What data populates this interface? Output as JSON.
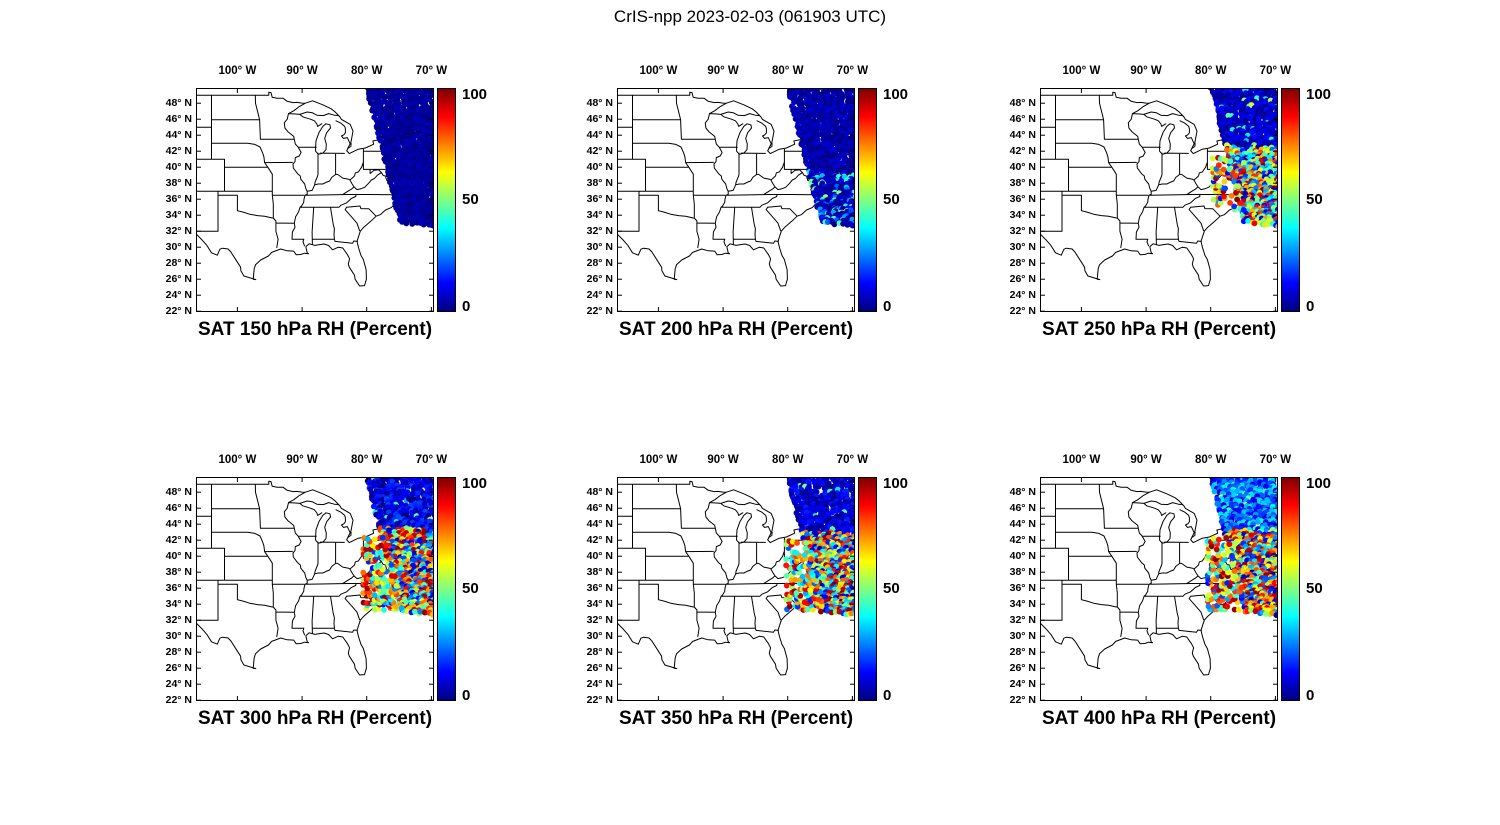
{
  "figure": {
    "title": "CrIS-npp 2023-02-03 (061903 UTC)"
  },
  "axes": {
    "lon_tick_labels": [
      "100° W",
      "90° W",
      "80° W",
      "70° W"
    ],
    "lon_tick_values": [
      -100,
      -90,
      -80,
      -70
    ],
    "lat_tick_labels": [
      "48° N",
      "46° N",
      "44° N",
      "42° N",
      "40° N",
      "38° N",
      "36° N",
      "34° N",
      "32° N",
      "30° N",
      "28° N",
      "26° N",
      "24° N",
      "22° N"
    ],
    "lat_tick_values": [
      48,
      46,
      44,
      42,
      40,
      38,
      36,
      34,
      32,
      30,
      28,
      26,
      24,
      22
    ],
    "lon_range_deg": [
      -106.4,
      -69.6
    ],
    "lat_range_deg": [
      21.9,
      49.9
    ]
  },
  "colorbar": {
    "min": 0,
    "max": 100,
    "tick_labels": [
      "100",
      "50",
      "0"
    ],
    "tick_values": [
      100,
      50,
      0
    ],
    "colormap": "jet",
    "gradient_stops": [
      "#000080",
      "#0000ff",
      "#00ffff",
      "#ffff00",
      "#ff0000",
      "#800000"
    ]
  },
  "panels": [
    {
      "title": "SAT 150 hPa RH (Percent)",
      "level_hPa": 150,
      "sim": {
        "seed": 11,
        "mode": "uniform",
        "nMin": 0,
        "nMax": 6,
        "patch": false
      }
    },
    {
      "title": "SAT 200 hPa RH (Percent)",
      "level_hPa": 200,
      "sim": {
        "seed": 23,
        "mode": "coastal",
        "nMin": 0,
        "nMax": 9,
        "patch": false
      }
    },
    {
      "title": "SAT 250 hPa RH (Percent)",
      "level_hPa": 250,
      "sim": {
        "seed": 37,
        "mode": "colorful",
        "nMin": 0,
        "nMax": 14,
        "splitLat": 42.5,
        "highFrac": 0.3,
        "patch": true,
        "patchWest": -79.6,
        "patchLatMin": 34.8,
        "patchLatMax": 41.5,
        "patchDensity": 0.33,
        "dropNorth": 0
      }
    },
    {
      "title": "SAT 300 hPa RH (Percent)",
      "level_hPa": 300,
      "sim": {
        "seed": 49,
        "mode": "colorful",
        "nMin": 0,
        "nMax": 20,
        "splitLat": 43.5,
        "highFrac": 0.42,
        "patch": true,
        "patchWest": -80.4,
        "patchLatMin": 33.4,
        "patchLatMax": 42.4,
        "patchDensity": 0.6,
        "dropNorth": 0.05
      }
    },
    {
      "title": "SAT 350 hPa RH (Percent)",
      "level_hPa": 350,
      "sim": {
        "seed": 61,
        "mode": "colorful",
        "nMin": 0,
        "nMax": 16,
        "splitLat": 43.0,
        "highFrac": 0.36,
        "patch": true,
        "patchWest": -80.2,
        "patchLatMin": 33.4,
        "patchLatMax": 42.0,
        "patchDensity": 0.5,
        "dropNorth": 0.06
      }
    },
    {
      "title": "SAT 400 hPa RH (Percent)",
      "level_hPa": 400,
      "sim": {
        "seed": 77,
        "mode": "colorful",
        "nMin": 8,
        "nMax": 38,
        "splitLat": 43.5,
        "highFrac": 0.45,
        "patch": true,
        "patchWest": -80.4,
        "patchLatMin": 33.4,
        "patchLatMax": 42.4,
        "patchDensity": 0.55,
        "dropNorth": 0.04
      }
    }
  ],
  "chart_data": {
    "type": "scatter",
    "title": "CrIS-npp 2023-02-03 (061903 UTC)",
    "satellite": "CrIS-npp",
    "date": "2023-02-03",
    "time_utc": "061903",
    "variable": "relative humidity",
    "units": "percent",
    "description": "Six map subplots over the eastern United States showing CrIS-npp satellite sounding retrievals of relative humidity (percent) at six pressure levels, plotted as colored dots along the satellite swath using a jet colormap scaled 0-100.",
    "levels_hPa": [
      150,
      200,
      250,
      300,
      350,
      400
    ],
    "color_scale": {
      "min": 0,
      "max": 100,
      "ticks": [
        0,
        50,
        100
      ],
      "colormap": "jet"
    },
    "map_extent": {
      "lon_deg": [
        -106.4,
        -69.6
      ],
      "lat_deg": [
        21.9,
        49.9
      ]
    },
    "swath_lon_lat_corners": [
      [
        -80.0,
        50.6
      ],
      [
        -66.0,
        50.6
      ],
      [
        -64.6,
        32.3
      ],
      [
        -74.7,
        33.2
      ]
    ],
    "subplots": [
      {
        "level_hPa": 150,
        "title": "SAT 150 hPa RH (Percent)",
        "rh_pattern": "Uniformly near 0-6 percent (solid dark blue) across the entire swath from ~33N to the top of the map."
      },
      {
        "level_hPa": 200,
        "title": "SAT 200 hPa RH (Percent)",
        "rh_pattern": "Mostly 0-9 percent dark blue; scattered 15-50 percent (lighter blue/cyan) retrievals offshore south of about 39.5N."
      },
      {
        "level_hPa": 250,
        "title": "SAT 250 hPa RH (Percent)",
        "rh_pattern": "Dark blue (below ~14 percent) north of about 42.5N; mixed 5-100 percent values (cyan, yellow, orange, red) between 33N and 42N including points over Virginia and the Carolinas."
      },
      {
        "level_hPa": 300,
        "title": "SAT 300 hPa RH (Percent)",
        "rh_pattern": "Blue (below ~20 percent) north of about 43.5N with small gaps; dense mixed 0-100 percent values south of it, extending west to about 80.4W over the mid-Atlantic states."
      },
      {
        "level_hPa": 350,
        "title": "SAT 350 hPa RH (Percent)",
        "rh_pattern": "Blue (below ~16 percent) in the north with occasional cyan; mixed 0-100 percent band from 33N to 40N extending west to about 80W."
      },
      {
        "level_hPa": 400,
        "title": "SAT 400 hPa RH (Percent)",
        "rh_pattern": "Moderate blues 8-38 percent across the northern swath; mixed 20-100 percent values south of about 43.5N down to 33N."
      }
    ]
  }
}
